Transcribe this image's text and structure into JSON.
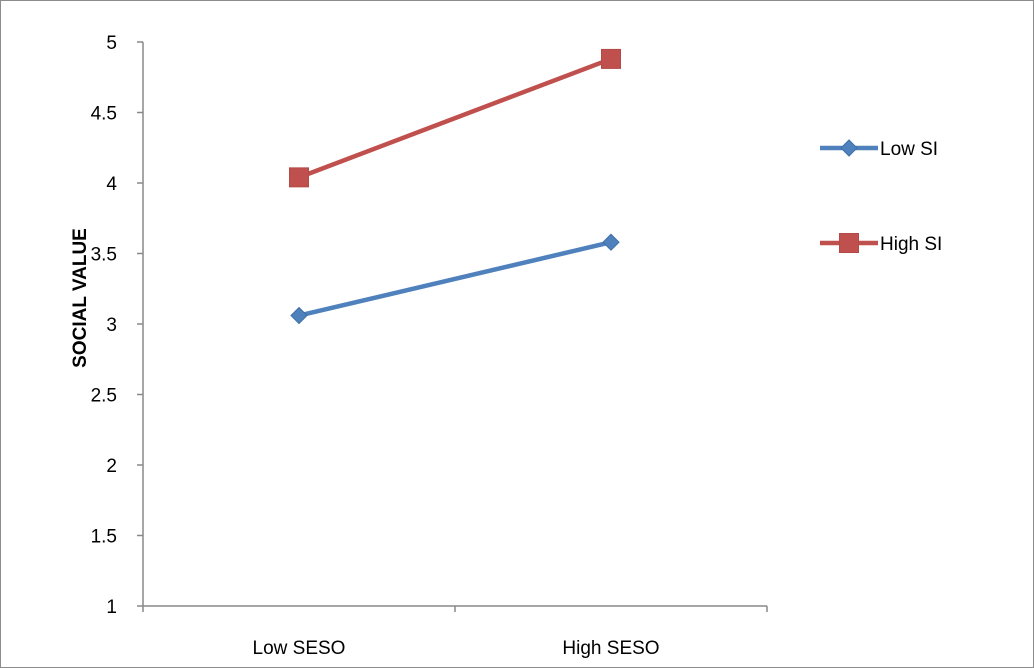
{
  "chart_data": {
    "type": "line",
    "title": "",
    "xlabel": "",
    "ylabel": "SOCIAL VALUE",
    "categories": [
      "Low SESO",
      "High SESO"
    ],
    "ylim": [
      1,
      5
    ],
    "yticks": [
      "1",
      "1.5",
      "2",
      "2.5",
      "3",
      "3.5",
      "4",
      "4.5",
      "5"
    ],
    "grid": false,
    "legend_position": "right",
    "series": [
      {
        "name": "Low SI",
        "values": [
          3.06,
          3.58
        ],
        "color": "#4f81bd",
        "marker": "diamond"
      },
      {
        "name": "High SI",
        "values": [
          4.04,
          4.88
        ],
        "color": "#c0504d",
        "marker": "square"
      }
    ]
  }
}
